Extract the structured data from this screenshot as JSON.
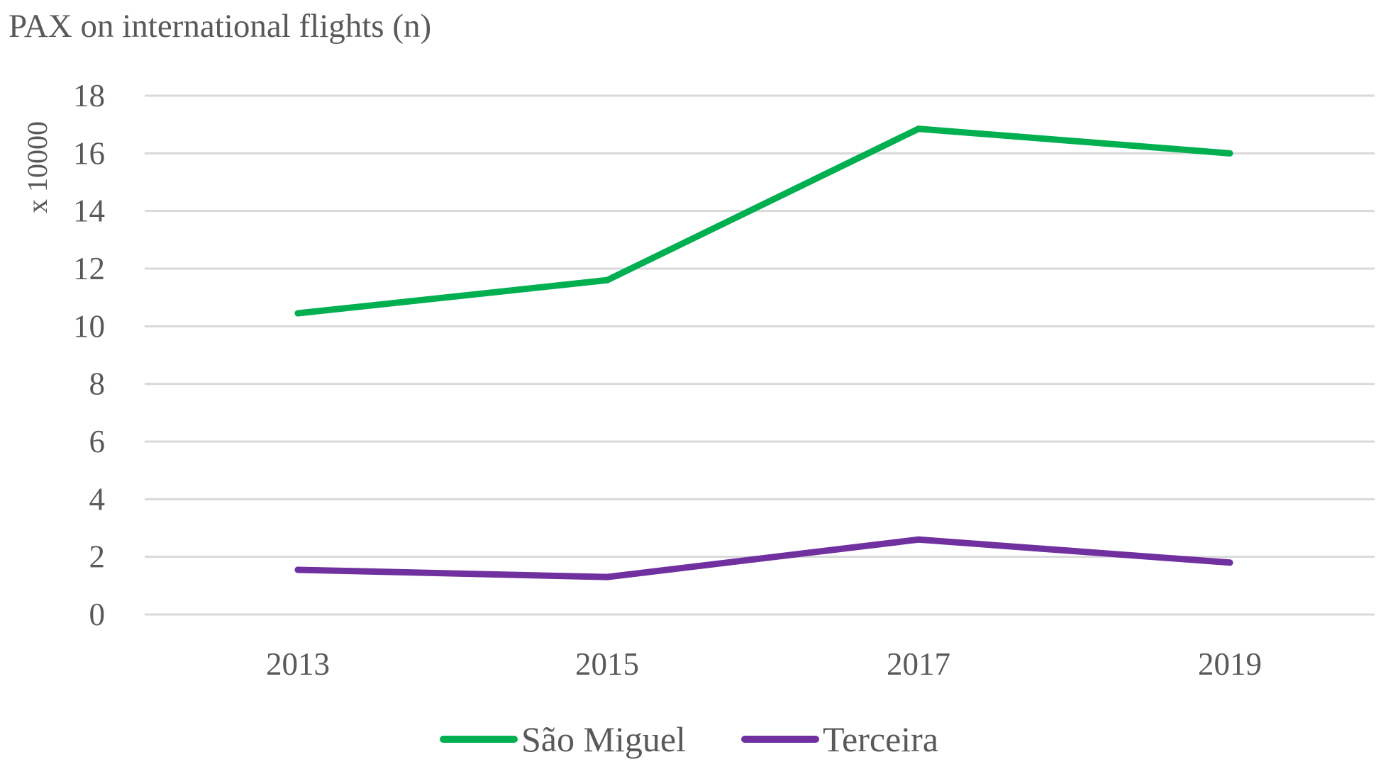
{
  "chart_data": {
    "type": "line",
    "title": "PAX on international flights (n)",
    "ylabel": "x 10000",
    "xlabel": "",
    "categories": [
      "2013",
      "2015",
      "2017",
      "2019"
    ],
    "ylim": [
      0,
      18
    ],
    "yticks": [
      0,
      2,
      4,
      6,
      8,
      10,
      12,
      14,
      16,
      18
    ],
    "grid": true,
    "legend_position": "bottom",
    "series": [
      {
        "name": "São Miguel",
        "color": "#00b050",
        "values": [
          10.45,
          11.6,
          16.85,
          16.0
        ]
      },
      {
        "name": "Terceira",
        "color": "#7030a0",
        "values": [
          1.55,
          1.3,
          2.6,
          1.8
        ]
      }
    ]
  }
}
